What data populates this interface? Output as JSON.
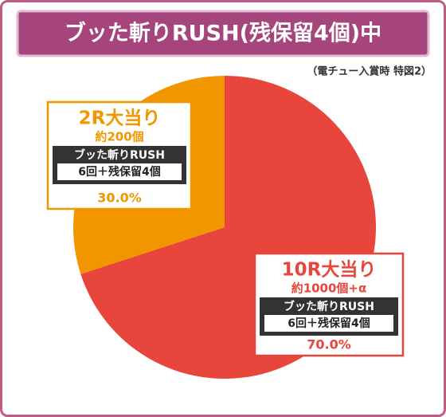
{
  "chart_data": {
    "type": "pie",
    "title": "ブッた斬りRUSH(残保留4個)中",
    "subtitle": "（電チュー入賞時 特図2）",
    "categories": [
      "10R大当り",
      "2R大当り"
    ],
    "values": [
      70,
      30
    ],
    "value_labels": [
      "70.0%",
      "30.0%"
    ],
    "colors": [
      "#e8453c",
      "#f29600"
    ],
    "amounts": [
      "約1000個+α",
      "約200個"
    ],
    "rush": [
      "ブッた斬りRUSH",
      "ブッた斬りRUSH"
    ],
    "rush_details": [
      "6回＋残保留4個",
      "6回＋残保留4個"
    ]
  }
}
